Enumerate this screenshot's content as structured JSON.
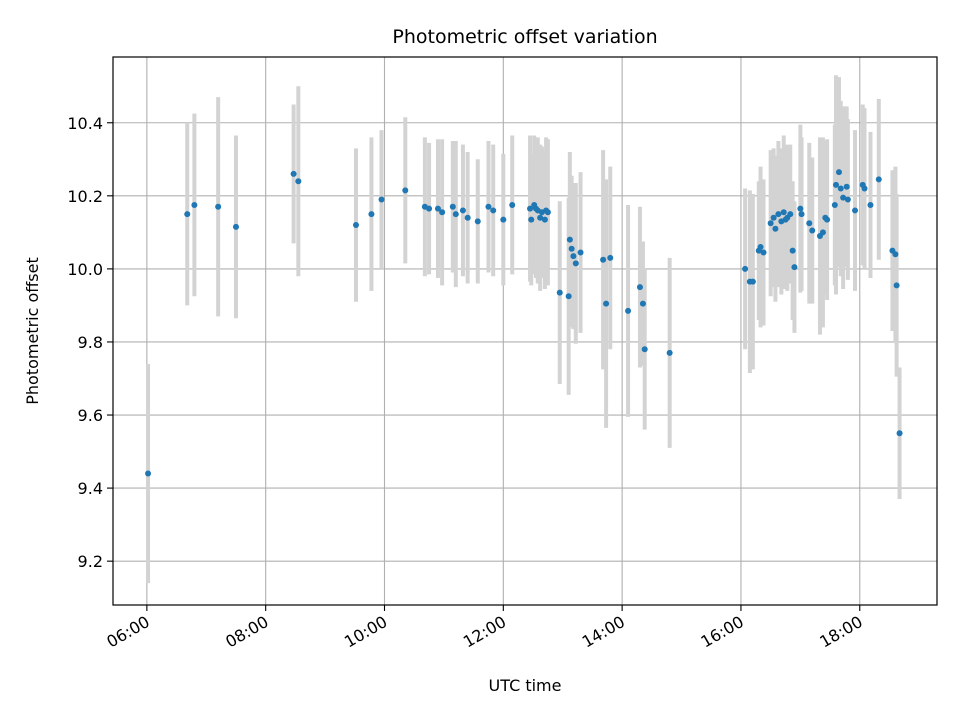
{
  "chart_data": {
    "type": "scatter",
    "title": "Photometric offset variation",
    "xlabel": "UTC time",
    "ylabel": "Photometric offset",
    "x_unit": "hours UTC",
    "xlim": [
      5.43,
      19.3
    ],
    "ylim": [
      9.08,
      10.58
    ],
    "xticks": [
      {
        "value": 6,
        "label": "06:00"
      },
      {
        "value": 8,
        "label": "08:00"
      },
      {
        "value": 10,
        "label": "10:00"
      },
      {
        "value": 12,
        "label": "12:00"
      },
      {
        "value": 14,
        "label": "14:00"
      },
      {
        "value": 16,
        "label": "16:00"
      },
      {
        "value": 18,
        "label": "18:00"
      }
    ],
    "yticks": [
      {
        "value": 9.2,
        "label": "9.2"
      },
      {
        "value": 9.4,
        "label": "9.4"
      },
      {
        "value": 9.6,
        "label": "9.6"
      },
      {
        "value": 9.8,
        "label": "9.8"
      },
      {
        "value": 10.0,
        "label": "10.0"
      },
      {
        "value": 10.2,
        "label": "10.2"
      },
      {
        "value": 10.4,
        "label": "10.4"
      }
    ],
    "grid": true,
    "colors": {
      "point": "#1f77b4",
      "errorbar": "#d3d3d3",
      "grid": "#b0b0b0"
    },
    "series": [
      {
        "x": [
          6.02,
          6.68,
          6.8,
          7.2,
          7.5,
          8.47,
          8.55,
          9.52,
          9.78,
          9.95,
          10.35,
          10.68,
          10.75,
          10.9,
          10.97,
          11.15,
          11.2,
          11.32,
          11.4,
          11.57,
          11.75,
          11.83,
          12.0,
          12.15,
          12.45,
          12.47,
          12.52,
          12.55,
          12.58,
          12.62,
          12.65,
          12.7,
          12.72,
          12.75,
          12.95,
          13.1,
          13.12,
          13.15,
          13.18,
          13.22,
          13.3,
          13.68,
          13.73,
          13.8,
          14.1,
          14.3,
          14.35,
          14.38,
          14.8,
          16.07,
          16.15,
          16.2,
          16.3,
          16.33,
          16.38,
          16.5,
          16.55,
          16.58,
          16.63,
          16.68,
          16.72,
          16.75,
          16.78,
          16.83,
          16.87,
          16.9,
          17.0,
          17.02,
          17.15,
          17.2,
          17.33,
          17.38,
          17.42,
          17.45,
          17.58,
          17.6,
          17.65,
          17.68,
          17.72,
          17.78,
          17.8,
          17.92,
          18.05,
          18.08,
          18.18,
          18.32,
          18.55,
          18.6,
          18.62,
          18.67
        ],
        "y": [
          9.44,
          10.15,
          10.175,
          10.17,
          10.115,
          10.26,
          10.24,
          10.12,
          10.15,
          10.19,
          10.215,
          10.17,
          10.165,
          10.165,
          10.155,
          10.17,
          10.15,
          10.16,
          10.14,
          10.13,
          10.17,
          10.16,
          10.135,
          10.175,
          10.165,
          10.135,
          10.175,
          10.165,
          10.16,
          10.14,
          10.155,
          10.135,
          10.16,
          10.155,
          9.935,
          9.925,
          10.08,
          10.055,
          10.035,
          10.015,
          10.045,
          10.025,
          9.905,
          10.03,
          9.885,
          9.95,
          9.905,
          9.78,
          9.77,
          10.0,
          9.965,
          9.965,
          10.05,
          10.06,
          10.045,
          10.125,
          10.14,
          10.11,
          10.15,
          10.13,
          10.155,
          10.135,
          10.14,
          10.15,
          10.05,
          10.005,
          10.165,
          10.15,
          10.125,
          10.105,
          10.09,
          10.1,
          10.14,
          10.135,
          10.175,
          10.23,
          10.265,
          10.22,
          10.195,
          10.225,
          10.19,
          10.16,
          10.23,
          10.22,
          10.175,
          10.245,
          10.05,
          10.04,
          9.955,
          9.55
        ],
        "yerr": [
          0.3,
          0.25,
          0.25,
          0.3,
          0.25,
          0.19,
          0.26,
          0.21,
          0.21,
          0.19,
          0.2,
          0.19,
          0.18,
          0.19,
          0.2,
          0.18,
          0.2,
          0.18,
          0.18,
          0.17,
          0.18,
          0.18,
          0.18,
          0.19,
          0.2,
          0.18,
          0.19,
          0.19,
          0.2,
          0.2,
          0.18,
          0.19,
          0.2,
          0.2,
          0.25,
          0.27,
          0.24,
          0.2,
          0.2,
          0.22,
          0.22,
          0.3,
          0.34,
          0.25,
          0.29,
          0.22,
          0.17,
          0.22,
          0.26,
          0.22,
          0.25,
          0.24,
          0.19,
          0.22,
          0.2,
          0.2,
          0.19,
          0.2,
          0.2,
          0.2,
          0.21,
          0.19,
          0.2,
          0.19,
          0.19,
          0.18,
          0.23,
          0.21,
          0.22,
          0.2,
          0.27,
          0.26,
          0.21,
          0.22,
          0.22,
          0.3,
          0.26,
          0.24,
          0.25,
          0.22,
          0.22,
          0.22,
          0.22,
          0.22,
          0.2,
          0.22,
          0.22,
          0.24,
          0.25,
          0.18
        ]
      }
    ]
  }
}
